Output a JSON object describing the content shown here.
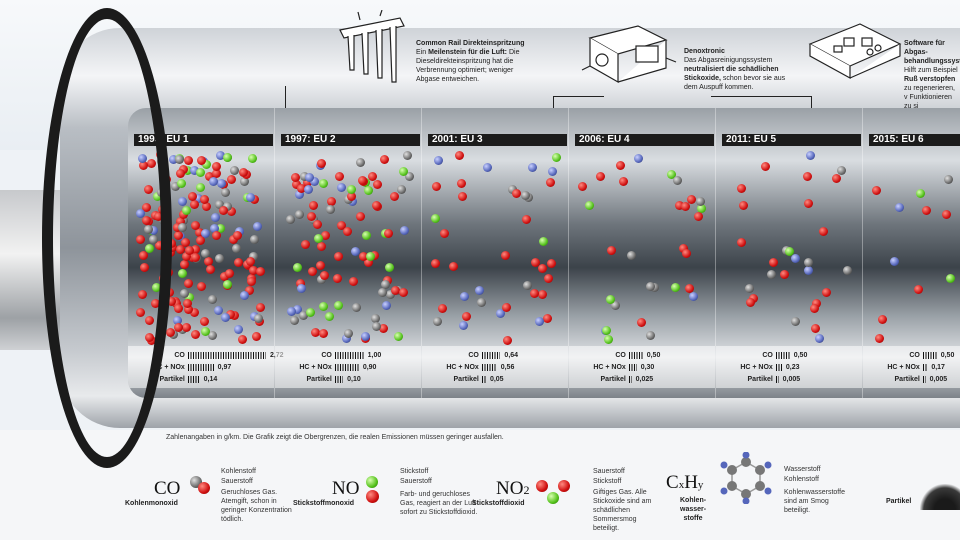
{
  "callouts": [
    {
      "title": "Common Rail Direkteinspritzung",
      "pre": "Ein ",
      "bold": "Meilenstein für die Luft:",
      "post": " Die Dieseldirekteinspritzung hat die Verbrennung optimiert; weniger Abgase entweichen.",
      "icon": "injector-rail-icon"
    },
    {
      "title": "Denoxtronic",
      "pre": "Das Abgasreinigungssystem ",
      "bold": "neutralisiert die schädlichen Stickoxide,",
      "post": " schon bevor sie aus dem Auspuff kommen.",
      "icon": "dosing-module-icon"
    },
    {
      "title": "Software für Abgas- behandlungssyst",
      "pre": "Hilft zum Beispiel ",
      "bold": "Ruß verstopfen",
      "post": " zu regenerieren, v Funktionieren zu si",
      "icon": "control-unit-icon"
    }
  ],
  "panels": [
    {
      "title": "1993: EU 1",
      "co": "2,72",
      "hc_nox": "0,97",
      "partikel": "0,14",
      "co_frac": 1.0,
      "hc_frac": 1.0,
      "pm_frac": 1.0
    },
    {
      "title": "1997: EU 2",
      "co": "1,00",
      "hc_nox": "0,90",
      "partikel": "0,10",
      "co_frac": 0.37,
      "hc_frac": 0.93,
      "pm_frac": 0.71
    },
    {
      "title": "2001: EU 3",
      "co": "0,64",
      "hc_nox": "0,56",
      "partikel": "0,05",
      "co_frac": 0.24,
      "hc_frac": 0.58,
      "pm_frac": 0.36
    },
    {
      "title": "2006: EU 4",
      "co": "0,50",
      "hc_nox": "0,30",
      "partikel": "0,025",
      "co_frac": 0.18,
      "hc_frac": 0.31,
      "pm_frac": 0.18
    },
    {
      "title": "2011: EU 5",
      "co": "0,50",
      "hc_nox": "0,23",
      "partikel": "0,005",
      "co_frac": 0.18,
      "hc_frac": 0.24,
      "pm_frac": 0.04
    },
    {
      "title": "2015: EU 6",
      "co": "0,50",
      "hc_nox": "0,17",
      "partikel": "0,005",
      "co_frac": 0.18,
      "hc_frac": 0.18,
      "pm_frac": 0.04
    }
  ],
  "metric_labels": {
    "co": "CO",
    "hc_nox": "HC + NOx",
    "partikel": "Partikel"
  },
  "footnote": "Zahlenangaben in g/km. Die Grafik zeigt die Obergrenzen, die realen Emissionen müssen geringer ausfallen.",
  "legend": [
    {
      "formula": "CO",
      "name": "Kohlenmonoxid",
      "atoms": [
        "Kohlenstoff",
        "Sauerstoff"
      ],
      "desc": "Geruchloses Gas. Atemgift, schon in geringer Konzentration tödlich."
    },
    {
      "formula": "NO",
      "name": "Stickstoffmonoxid",
      "atoms": [
        "Stickstoff",
        "Sauerstoff"
      ],
      "desc": "Farb- und geruchloses Gas, reagiert an der Luft sofort zu Stickstoffdioxid."
    },
    {
      "formula": "NO2",
      "name": "Stickstoffdioxid",
      "atoms": [
        "Sauerstoff",
        "Stickstoff"
      ],
      "desc": "Giftiges Gas. Alle Stickoxide sind am schädlichen Sommersmog beteiligt."
    },
    {
      "formula": "CxHy",
      "name": "Kohlenwasserstoffe",
      "name_lines": [
        "Kohlen-",
        "wasser-",
        "stoffe"
      ],
      "atoms": [
        "Wasserstoff",
        "Kohlenstoff"
      ],
      "desc": "Kohlenwasserstoffe sind am Smog beteiligt."
    },
    {
      "formula": "",
      "name": "Partikel",
      "atoms": [],
      "desc": ""
    }
  ],
  "colors": {
    "oxygen": "#d01010",
    "nitrogen": "#55c21c",
    "carbon": "#6a6a6a",
    "hydrogen": "#5566bb",
    "label_bg": "#1c1c1c"
  }
}
